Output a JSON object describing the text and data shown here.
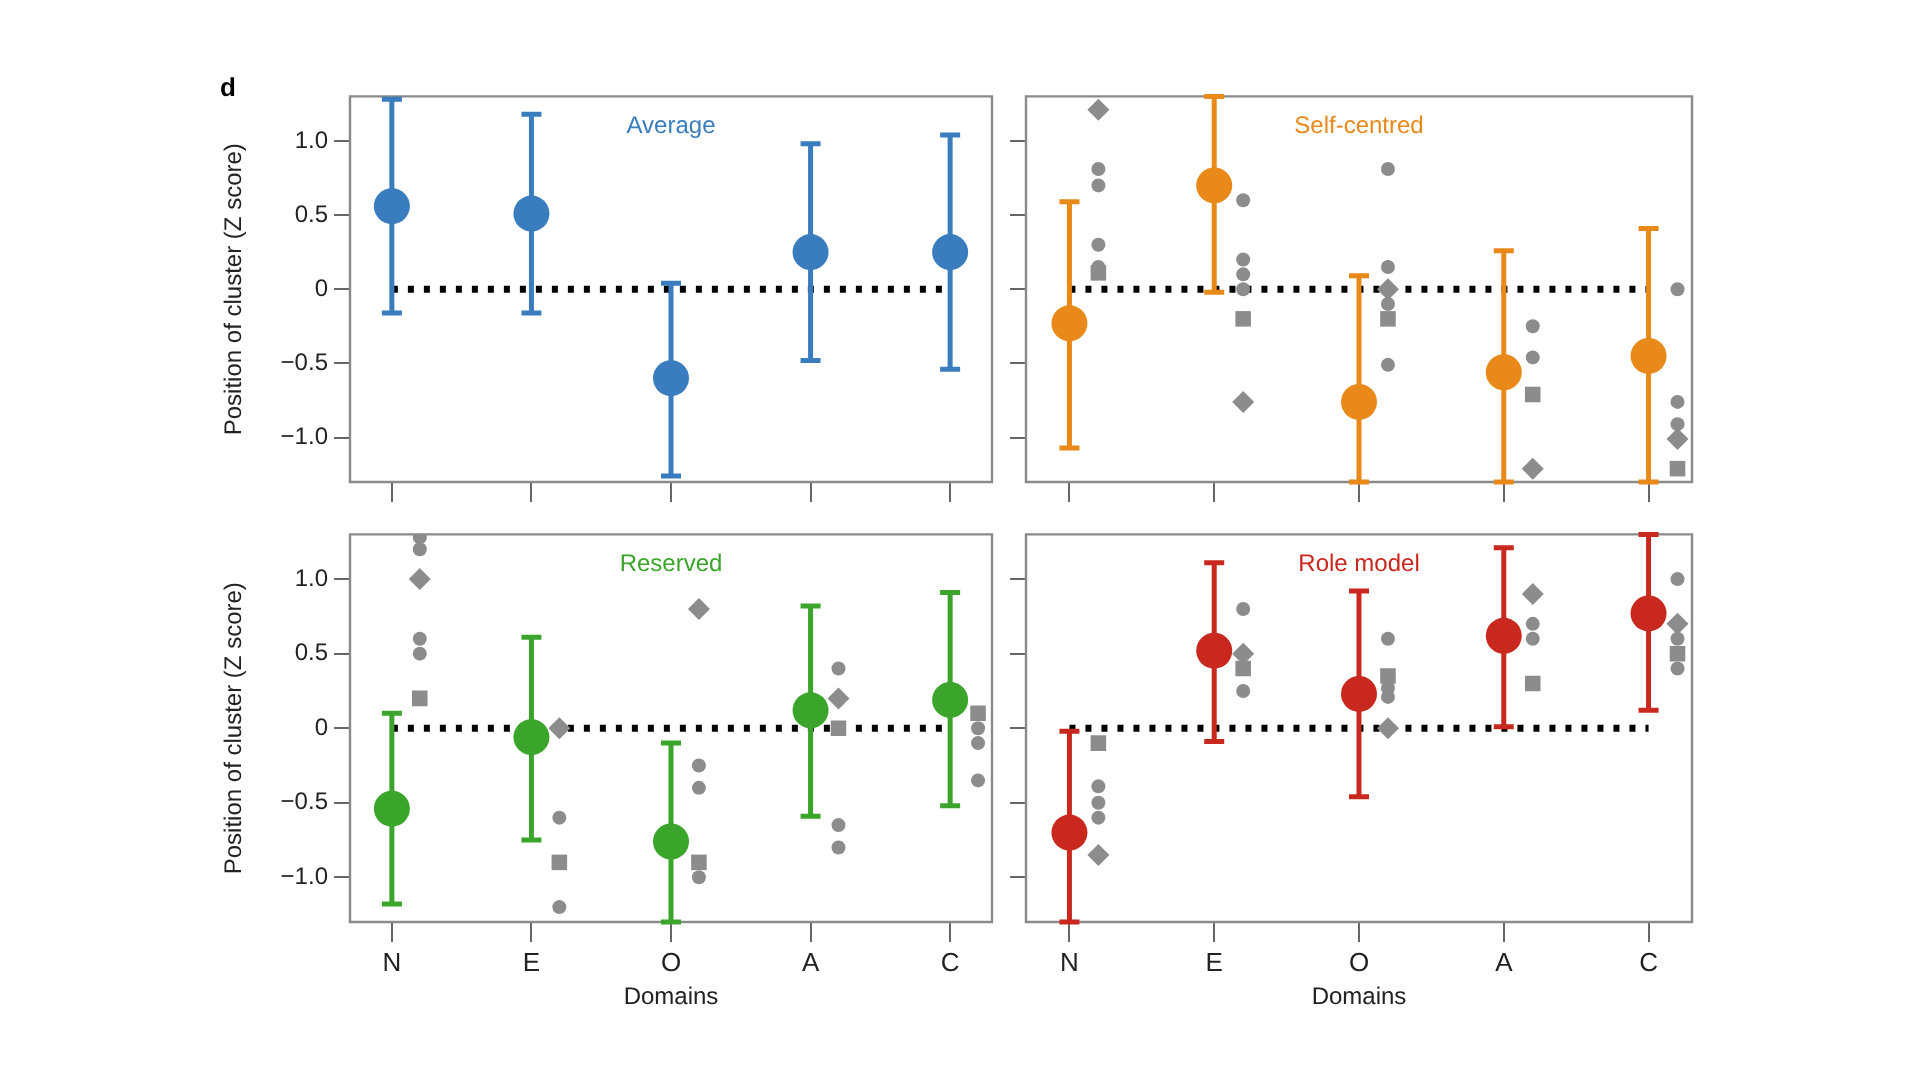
{
  "chart_data": [
    {
      "type": "scatter",
      "title": "Average",
      "ylabel": "Position of cluster ($_{}$Z score)",
      "annotations": [
        "d"
      ],
      "categories": [
        "N",
        "E",
        "O",
        "A",
        "C"
      ],
      "ylim": [
        -1.3,
        1.3
      ],
      "yticks": [
        {
          "value": -1,
          "label": "−1.0"
        },
        {
          "value": -0.5,
          "label": "−0.5"
        },
        0,
        {
          "value": 0.5,
          "label": "0.5"
        },
        {
          "value": 1,
          "label": "1.0"
        }
      ],
      "grid": false,
      "tick_labels": "y",
      "ref_lines": [
        {
          "axis": "y",
          "value": 0,
          "color": "#000000",
          "line_style": "dotted"
        }
      ],
      "series": [
        {
          "color": "#3a7dbf",
          "marker": "circle",
          "values": [
            0.56,
            0.51,
            -0.6,
            0.25,
            0.25
          ],
          "errors": [
            [
              -0.16,
              1.28
            ],
            [
              -0.16,
              1.18
            ],
            [
              -1.26,
              0.04
            ],
            [
              -0.48,
              0.98
            ],
            [
              -0.54,
              1.04
            ]
          ]
        }
      ]
    },
    {
      "type": "scatter",
      "title": "Self-centred",
      "categories": [
        "N",
        "E",
        "O",
        "A",
        "C"
      ],
      "ylim": [
        -1.3,
        1.3
      ],
      "yticks": [
        {
          "value": -1,
          "label": null
        },
        {
          "value": -0.5,
          "label": null
        },
        {
          "value": 0,
          "label": null
        },
        {
          "value": 0.5,
          "label": null
        },
        {
          "value": 1,
          "label": null
        }
      ],
      "grid": false,
      "tick_labels": false,
      "ref_lines": [
        {
          "axis": "y",
          "value": 0,
          "color": "#000000",
          "line_style": "dotted"
        }
      ],
      "series": [
        {
          "color": "#e8891a",
          "marker": "circle",
          "values": [
            -0.23,
            0.7,
            -0.76,
            -0.56,
            -0.45
          ],
          "errors": [
            [
              -1.07,
              0.59
            ],
            [
              -0.02,
              1.3
            ],
            [
              -1.3,
              0.09
            ],
            [
              -1.3,
              0.26
            ],
            [
              -1.3,
              0.41
            ]
          ]
        },
        {
          "color": "#8c8c8c",
          "marker": "circle",
          "x": [
            "N",
            "N",
            "N",
            "N",
            "E",
            "E",
            "E",
            "E",
            "O",
            "O",
            "O",
            "O",
            "A",
            "A",
            "C",
            "C",
            "C"
          ],
          "values": [
            0.81,
            0.7,
            0.3,
            0.15,
            0.6,
            0.2,
            0.1,
            0,
            0.81,
            0.15,
            -0.1,
            -0.51,
            -0.25,
            -0.46,
            0,
            -0.76,
            -0.91
          ]
        },
        {
          "color": "#8c8c8c",
          "marker": "square",
          "x": [
            "N",
            "E",
            "O",
            "A",
            "C"
          ],
          "values": [
            0.11,
            -0.2,
            -0.2,
            -0.71,
            -1.21
          ]
        },
        {
          "color": "#8c8c8c",
          "marker": "diamond",
          "x": [
            "N",
            "E",
            "O",
            "A",
            "C"
          ],
          "values": [
            1.21,
            -0.76,
            0,
            -1.21,
            -1.01
          ]
        }
      ]
    },
    {
      "type": "scatter",
      "title": "Reserved",
      "xlabel": "Domains",
      "ylabel": "Position of cluster ($_{}$Z score)",
      "categories": [
        "N",
        "E",
        "O",
        "A",
        "C"
      ],
      "ylim": [
        -1.3,
        1.3
      ],
      "yticks": [
        {
          "value": -1,
          "label": "−1.0"
        },
        {
          "value": -0.5,
          "label": "−0.5"
        },
        0,
        {
          "value": 0.5,
          "label": "0.5"
        },
        {
          "value": 1,
          "label": "1.0"
        }
      ],
      "grid": false,
      "ref_lines": [
        {
          "axis": "y",
          "value": 0,
          "color": "#000000",
          "line_style": "dotted"
        }
      ],
      "series": [
        {
          "color": "#3aa52a",
          "marker": "circle",
          "values": [
            -0.54,
            -0.06,
            -0.76,
            0.12,
            0.19
          ],
          "errors": [
            [
              -1.18,
              0.1
            ],
            [
              -0.75,
              0.61
            ],
            [
              -1.3,
              -0.1
            ],
            [
              -0.59,
              0.82
            ],
            [
              -0.52,
              0.91
            ]
          ]
        },
        {
          "color": "#8c8c8c",
          "marker": "circle",
          "x": [
            "N",
            "N",
            "N",
            "N",
            "E",
            "E",
            "O",
            "O",
            "O",
            "A",
            "A",
            "A",
            "C",
            "C",
            "C"
          ],
          "values": [
            1.28,
            1.2,
            0.6,
            0.5,
            -0.6,
            -1.2,
            -0.25,
            -0.4,
            -1.0,
            0.4,
            -0.65,
            -0.8,
            0,
            -0.1,
            -0.35
          ]
        },
        {
          "color": "#8c8c8c",
          "marker": "square",
          "x": [
            "N",
            "E",
            "O",
            "A",
            "C"
          ],
          "values": [
            0.2,
            -0.9,
            -0.9,
            0,
            0.1
          ]
        },
        {
          "color": "#8c8c8c",
          "marker": "diamond",
          "x": [
            "N",
            "E",
            "O",
            "A"
          ],
          "values": [
            1.0,
            0,
            0.8,
            0.2
          ]
        }
      ]
    },
    {
      "type": "scatter",
      "title": "Role model",
      "xlabel": "Domains",
      "categories": [
        "N",
        "E",
        "O",
        "A",
        "C"
      ],
      "ylim": [
        -1.3,
        1.3
      ],
      "yticks": [
        {
          "value": -1,
          "label": null
        },
        {
          "value": -0.5,
          "label": null
        },
        {
          "value": 0,
          "label": null
        },
        {
          "value": 0.5,
          "label": null
        },
        {
          "value": 1,
          "label": null
        }
      ],
      "grid": false,
      "tick_labels": "x",
      "ref_lines": [
        {
          "axis": "y",
          "value": 0,
          "color": "#000000",
          "line_style": "dotted"
        }
      ],
      "series": [
        {
          "color": "#c8281e",
          "marker": "circle",
          "values": [
            -0.7,
            0.52,
            0.23,
            0.62,
            0.77
          ],
          "errors": [
            [
              -1.3,
              -0.02
            ],
            [
              -0.09,
              1.11
            ],
            [
              -0.46,
              0.92
            ],
            [
              0.01,
              1.21
            ],
            [
              0.12,
              1.3
            ]
          ]
        },
        {
          "color": "#8c8c8c",
          "marker": "circle",
          "x": [
            "N",
            "N",
            "N",
            "E",
            "E",
            "O",
            "O",
            "O",
            "A",
            "A",
            "C",
            "C",
            "C"
          ],
          "values": [
            -0.39,
            -0.5,
            -0.6,
            0.8,
            0.25,
            0.6,
            0.27,
            0.21,
            0.7,
            0.6,
            1.0,
            0.6,
            0.4
          ]
        },
        {
          "color": "#8c8c8c",
          "marker": "square",
          "x": [
            "N",
            "E",
            "O",
            "A",
            "C"
          ],
          "values": [
            -0.1,
            0.4,
            0.35,
            0.3,
            0.5
          ]
        },
        {
          "color": "#8c8c8c",
          "marker": "diamond",
          "x": [
            "N",
            "E",
            "O",
            "A",
            "C"
          ],
          "values": [
            -0.85,
            0.5,
            0,
            0.9,
            0.7
          ]
        }
      ]
    }
  ]
}
